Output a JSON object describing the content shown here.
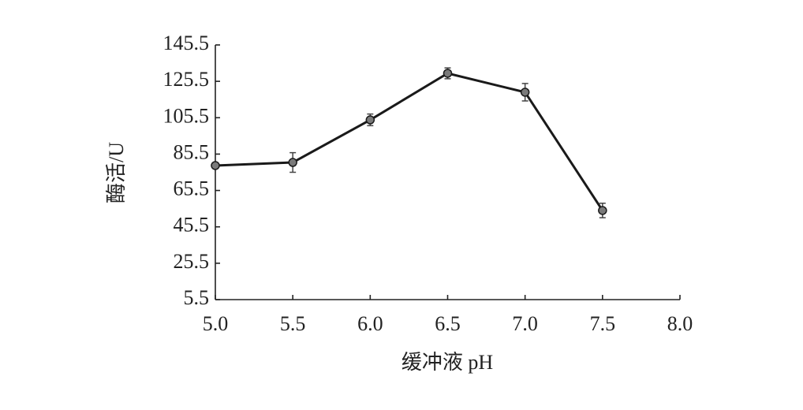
{
  "chart_data": {
    "type": "line",
    "x_label": "缓冲液 pH",
    "y_label": "酶活/U",
    "x": [
      5.0,
      5.5,
      6.0,
      6.5,
      7.0,
      7.5
    ],
    "series": [
      {
        "color": "#1a1a1a",
        "marker_color": "#7a7a7a",
        "values": [
          79.2,
          80.9,
          104.3,
          129.9,
          119.5,
          54.5
        ],
        "errors": [
          1.5,
          5.4,
          3.2,
          3.0,
          4.8,
          4.0
        ]
      }
    ],
    "xlim": [
      5,
      8
    ],
    "xticks": [
      {
        "value": 5,
        "label": "5.0"
      },
      {
        "value": 5.5,
        "label": "5.5"
      },
      {
        "value": 6,
        "label": "6.0"
      },
      {
        "value": 6.5,
        "label": "6.5"
      },
      {
        "value": 7,
        "label": "7.0"
      },
      {
        "value": 7.5,
        "label": "7.5"
      },
      {
        "value": 8,
        "label": "8.0"
      }
    ],
    "ylim": [
      5.5,
      145.5
    ],
    "yticks": [
      5.5,
      25.5,
      45.5,
      65.5,
      85.5,
      105.5,
      125.5,
      145.5
    ]
  }
}
